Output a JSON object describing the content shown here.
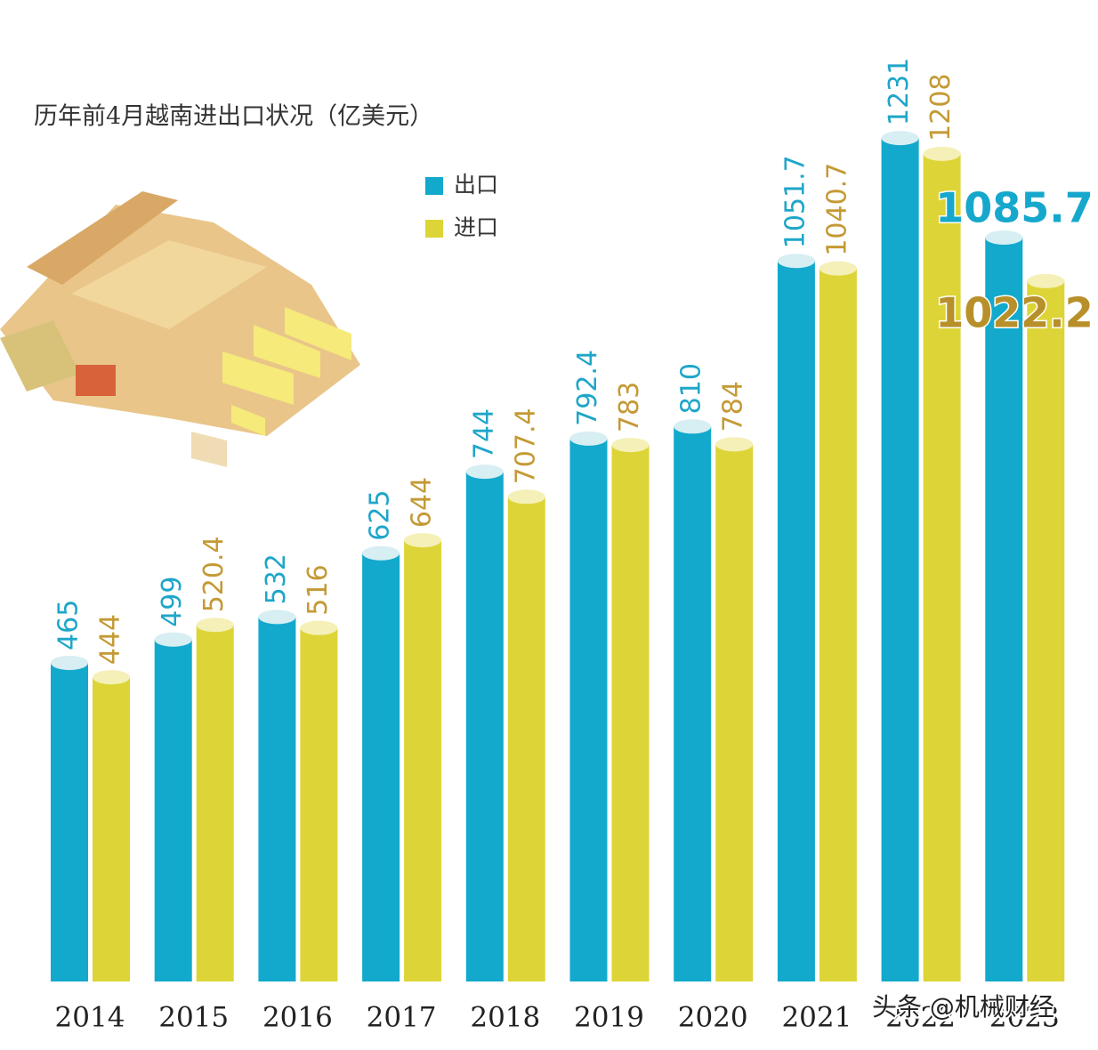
{
  "chart_data": {
    "type": "bar",
    "title": "历年前4月越南进出口状况（亿美元）",
    "categories": [
      "2014",
      "2015",
      "2016",
      "2017",
      "2018",
      "2019",
      "2020",
      "2021",
      "2022",
      "2023"
    ],
    "series": [
      {
        "name": "出口",
        "color": "#12a9cc",
        "values": [
          465,
          499,
          532,
          625,
          744,
          792.4,
          810,
          1051.7,
          1231,
          1085.7
        ]
      },
      {
        "name": "进口",
        "color": "#ddd537",
        "values": [
          444,
          520.4,
          516,
          644,
          707.4,
          783,
          784,
          1040.7,
          1208,
          1022.2
        ]
      }
    ],
    "ylim": [
      0,
      1300
    ],
    "watermark": "头条 @机械财经"
  }
}
